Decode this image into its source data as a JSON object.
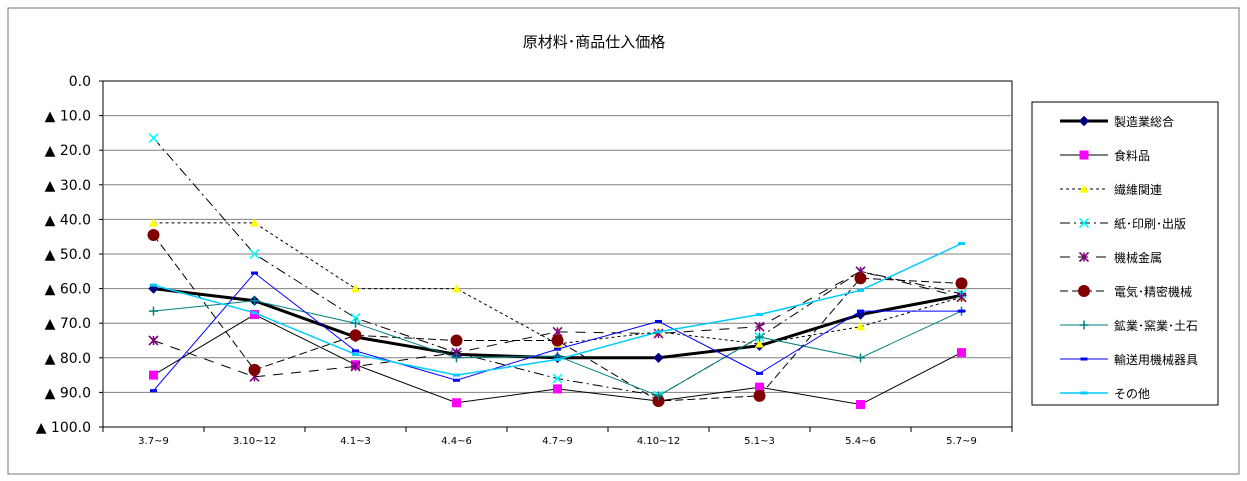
{
  "chart_data": {
    "type": "line",
    "title": "原材料･商品仕入価格",
    "categories": [
      "3.7~9",
      "3.10~12",
      "4.1~3",
      "4.4~6",
      "4.7~9",
      "4.10~12",
      "5.1~3",
      "5.4~6",
      "5.7~9"
    ],
    "yticks": [
      "0.0",
      "▲ 10.0",
      "▲ 20.0",
      "▲ 30.0",
      "▲ 40.0",
      "▲ 50.0",
      "▲ 60.0",
      "▲ 70.0",
      "▲ 80.0",
      "▲ 90.0",
      "▲ 100.0"
    ],
    "ylim": [
      0,
      100
    ],
    "y_reversed": true,
    "grid": true,
    "legend_position": "right",
    "series": [
      {
        "name": "製造業総合",
        "color": "#000000",
        "marker": "diamond",
        "markerColor": "#00007f",
        "dash": "",
        "width": 3,
        "values": [
          60,
          63.5,
          74,
          79,
          80,
          80,
          76.5,
          67.5,
          62
        ]
      },
      {
        "name": "食料品",
        "color": "#000000",
        "marker": "square",
        "markerColor": "#ff00ff",
        "dash": "",
        "width": 1,
        "values": [
          85,
          67.5,
          82,
          93,
          89,
          92.5,
          88.5,
          93.5,
          78.5
        ]
      },
      {
        "name": "繊維関連",
        "color": "#000000",
        "marker": "triangle",
        "markerColor": "#ffff00",
        "dash": "3,3",
        "width": 1,
        "values": [
          41,
          41,
          60,
          60,
          76,
          72.5,
          76,
          71,
          62.5
        ]
      },
      {
        "name": "紙･印刷･出版",
        "color": "#000000",
        "marker": "x",
        "markerColor": "#00ffff",
        "dash": "10,4,2,4",
        "width": 1,
        "values": [
          16.5,
          50,
          68.5,
          78.5,
          86,
          91,
          74,
          55,
          61.5
        ]
      },
      {
        "name": "機械金属",
        "color": "#000000",
        "marker": "star",
        "markerColor": "#800080",
        "dash": "10,8",
        "width": 1,
        "values": [
          75,
          85.5,
          82.5,
          78.5,
          72.5,
          73,
          71,
          55,
          62.5
        ]
      },
      {
        "name": "電気･精密機械",
        "color": "#000000",
        "marker": "circle",
        "markerColor": "#800000",
        "dash": "8,4",
        "width": 1,
        "values": [
          44.5,
          83.5,
          73.5,
          75,
          75,
          92.5,
          91,
          57,
          58.5
        ]
      },
      {
        "name": "鉱業･窯業･土石",
        "color": "#008080",
        "marker": "plus",
        "markerColor": "#008080",
        "dash": "",
        "width": 1,
        "values": [
          66.5,
          63.5,
          70,
          80,
          79.5,
          91,
          74,
          80,
          66.5
        ]
      },
      {
        "name": "輸送用機械器具",
        "color": "#0000ff",
        "marker": "dash",
        "markerColor": "#0000ff",
        "dash": "",
        "width": 1,
        "values": [
          89.5,
          55.5,
          78,
          86.5,
          77.5,
          69.5,
          84.5,
          66.5,
          66.5
        ]
      },
      {
        "name": "その他",
        "color": "#00ccff",
        "marker": "dash",
        "markerColor": "#00ccff",
        "dash": "",
        "width": 1.5,
        "values": [
          59,
          67,
          79,
          85,
          80.5,
          72.5,
          67.5,
          60.5,
          47
        ]
      }
    ]
  }
}
